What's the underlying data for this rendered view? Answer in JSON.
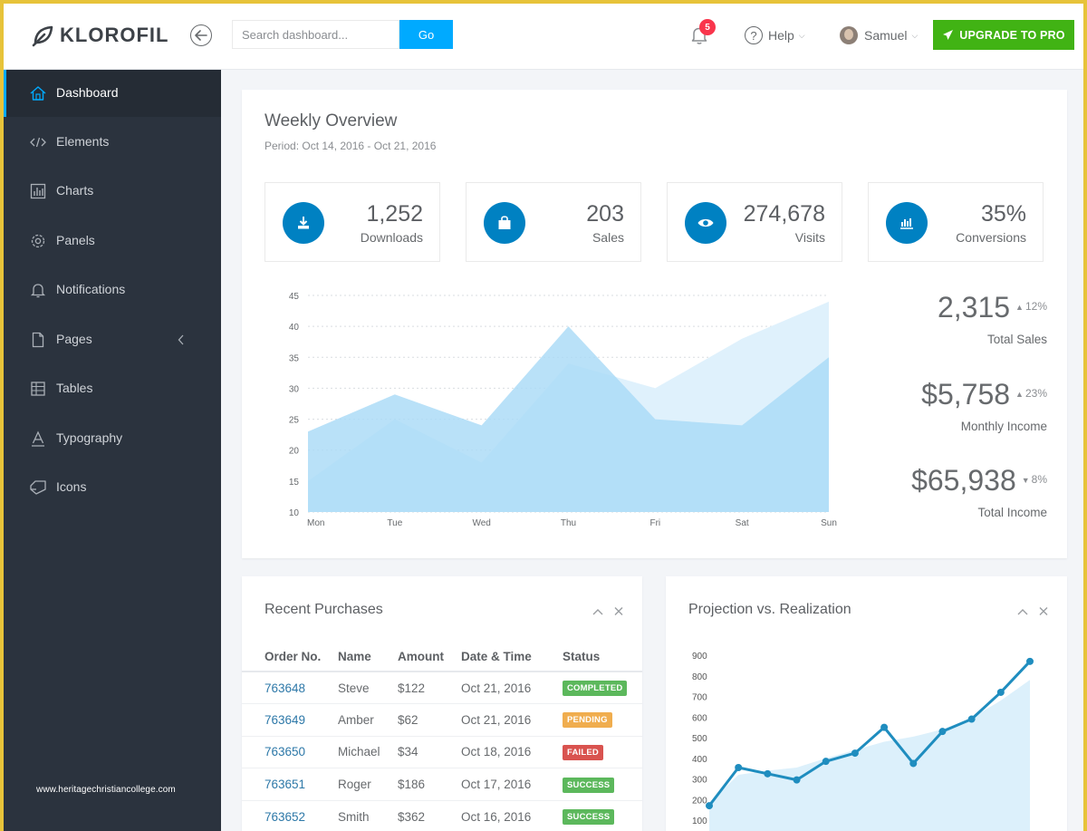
{
  "header": {
    "brand": "KLOROFIL",
    "search_placeholder": "Search dashboard...",
    "go_label": "Go",
    "notification_count": "5",
    "help_label": "Help",
    "user_name": "Samuel",
    "upgrade_label": "UPGRADE TO PRO"
  },
  "sidebar": {
    "items": [
      {
        "label": "Dashboard",
        "icon": "home-icon",
        "active": true
      },
      {
        "label": "Elements",
        "icon": "code-icon"
      },
      {
        "label": "Charts",
        "icon": "chart-icon"
      },
      {
        "label": "Panels",
        "icon": "cog-icon"
      },
      {
        "label": "Notifications",
        "icon": "bell-icon"
      },
      {
        "label": "Pages",
        "icon": "file-icon",
        "has_submenu": true
      },
      {
        "label": "Tables",
        "icon": "table-icon"
      },
      {
        "label": "Typography",
        "icon": "text-icon"
      },
      {
        "label": "Icons",
        "icon": "icons-icon"
      }
    ],
    "watermark": "www.heritagechristiancollege.com"
  },
  "overview": {
    "title": "Weekly Overview",
    "period": "Period: Oct 14, 2016 - Oct 21, 2016",
    "metrics": [
      {
        "value": "1,252",
        "label": "Downloads",
        "icon": "download-icon"
      },
      {
        "value": "203",
        "label": "Sales",
        "icon": "shopping-bag-icon"
      },
      {
        "value": "274,678",
        "label": "Visits",
        "icon": "eye-icon"
      },
      {
        "value": "35%",
        "label": "Conversions",
        "icon": "bar-chart-icon"
      }
    ],
    "stats": [
      {
        "value": "2,315",
        "change": "12%",
        "direction": "up",
        "label": "Total Sales"
      },
      {
        "value": "$5,758",
        "change": "23%",
        "direction": "up",
        "label": "Monthly Income"
      },
      {
        "value": "$65,938",
        "change": "8%",
        "direction": "down",
        "label": "Total Income"
      }
    ]
  },
  "purchases": {
    "title": "Recent Purchases",
    "columns": [
      "Order No.",
      "Name",
      "Amount",
      "Date & Time",
      "Status"
    ],
    "rows": [
      {
        "order": "763648",
        "name": "Steve",
        "amount": "$122",
        "date": "Oct 21, 2016",
        "status": "COMPLETED",
        "status_type": "completed"
      },
      {
        "order": "763649",
        "name": "Amber",
        "amount": "$62",
        "date": "Oct 21, 2016",
        "status": "PENDING",
        "status_type": "pending"
      },
      {
        "order": "763650",
        "name": "Michael",
        "amount": "$34",
        "date": "Oct 18, 2016",
        "status": "FAILED",
        "status_type": "failed"
      },
      {
        "order": "763651",
        "name": "Roger",
        "amount": "$186",
        "date": "Oct 17, 2016",
        "status": "SUCCESS",
        "status_type": "success"
      },
      {
        "order": "763652",
        "name": "Smith",
        "amount": "$362",
        "date": "Oct 16, 2016",
        "status": "SUCCESS",
        "status_type": "success"
      }
    ]
  },
  "projection": {
    "title": "Projection vs. Realization"
  },
  "colors": {
    "accent": "#00aaff",
    "upgrade": "#41b314",
    "sidebar": "#2b333e",
    "metric_circle": "#0081c2"
  },
  "chart_data": [
    {
      "type": "area",
      "categories": [
        "Mon",
        "Tue",
        "Wed",
        "Thu",
        "Fri",
        "Sat",
        "Sun"
      ],
      "y_ticks": [
        10,
        15,
        20,
        25,
        30,
        35,
        40,
        45
      ],
      "ylim": [
        10,
        45
      ],
      "grid": true,
      "series": [
        {
          "values": [
            15,
            25,
            18,
            34,
            30,
            38,
            44
          ],
          "color": "#dff1fc"
        },
        {
          "values": [
            23,
            29,
            24,
            40,
            25,
            24,
            35
          ],
          "color": "#a9daf6"
        }
      ]
    },
    {
      "type": "line",
      "y_ticks": [
        100,
        200,
        300,
        400,
        500,
        600,
        700,
        800,
        900
      ],
      "ylim": [
        100,
        900
      ],
      "grid": false,
      "series": [
        {
          "values": [
            170,
            355,
            325,
            295,
            385,
            425,
            550,
            375,
            530,
            590,
            720,
            870
          ],
          "color": "#1f8dbf"
        },
        {
          "values": [
            185,
            320,
            340,
            355,
            400,
            440,
            480,
            505,
            540,
            595,
            680,
            780
          ],
          "color": "#dcf0fb"
        }
      ]
    }
  ]
}
